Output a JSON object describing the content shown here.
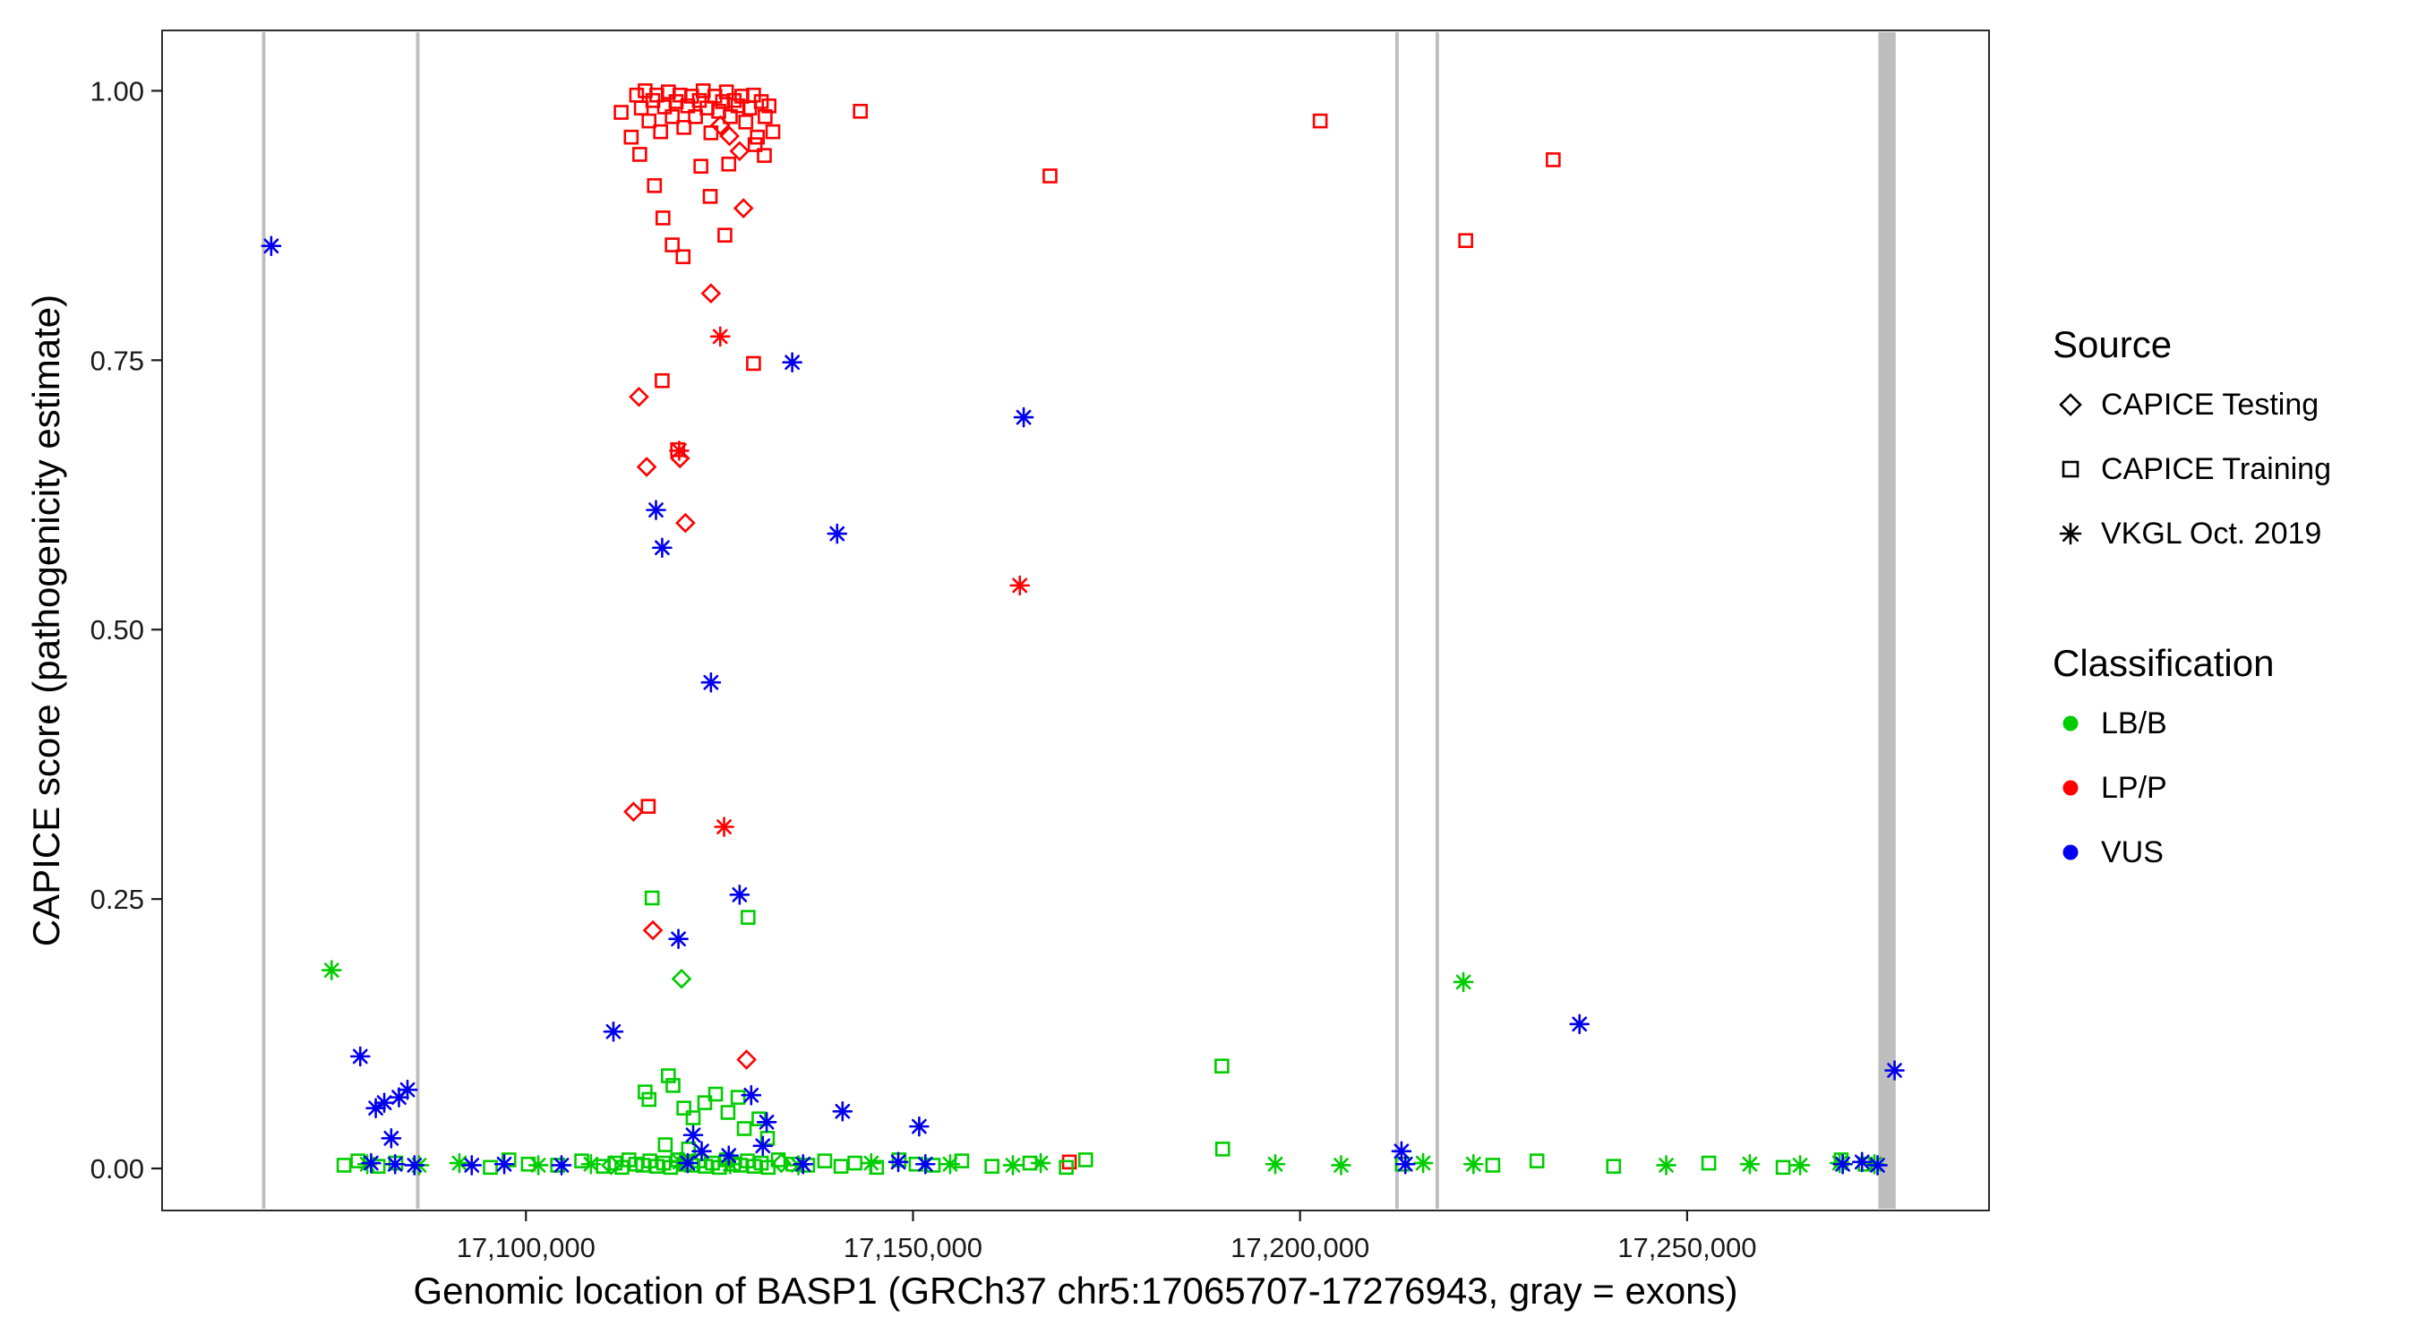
{
  "legend": {
    "source_title": "Source",
    "source_items": [
      {
        "label": "CAPICE Testing",
        "shape": "diamond"
      },
      {
        "label": "CAPICE Training",
        "shape": "square"
      },
      {
        "label": "VKGL Oct. 2019",
        "shape": "asterisk"
      }
    ],
    "classification_title": "Classification",
    "classification_items": [
      {
        "label": "LB/B",
        "color": "#00CD00"
      },
      {
        "label": "LP/P",
        "color": "#FF0000"
      },
      {
        "label": "VUS",
        "color": "#0000EE"
      }
    ]
  },
  "chart_data": {
    "type": "scatter",
    "title": "",
    "xlabel": "Genomic location of BASP1 (GRCh37 chr5:17065707-17276943, gray = exons)",
    "ylabel": "CAPICE score (pathogenicity estimate)",
    "x_domain": [
      17053000,
      17289000
    ],
    "y_domain": [
      -0.039,
      1.056
    ],
    "grid": "off",
    "legend_position": "right",
    "x_ticks": [
      {
        "value": 17100000,
        "label": "17,100,000"
      },
      {
        "value": 17150000,
        "label": "17,150,000"
      },
      {
        "value": 17200000,
        "label": "17,200,000"
      },
      {
        "value": 17250000,
        "label": "17,250,000"
      }
    ],
    "y_ticks": [
      {
        "value": 0,
        "label": "0.00"
      },
      {
        "value": 0.25,
        "label": "0.25"
      },
      {
        "value": 0.5,
        "label": "0.50"
      },
      {
        "value": 0.75,
        "label": "0.75"
      },
      {
        "value": 1,
        "label": "1.00"
      }
    ],
    "exon_color": "#BEBEBE",
    "exons": [
      [
        17065900,
        17066350
      ],
      [
        17085800,
        17086250
      ],
      [
        17212300,
        17212750
      ],
      [
        17217500,
        17217950
      ],
      [
        17274700,
        17276943
      ]
    ],
    "series": [
      {
        "source": "CAPICE Training",
        "classification": "LP/P",
        "shape": "square",
        "color": "#FF0000",
        "points": [
          [
            17112300,
            0.98
          ],
          [
            17113600,
            0.957
          ],
          [
            17114300,
            0.996
          ],
          [
            17114900,
            0.984
          ],
          [
            17115400,
            1.0
          ],
          [
            17115900,
            0.972
          ],
          [
            17116400,
            0.991
          ],
          [
            17116900,
            0.996
          ],
          [
            17117400,
            0.962
          ],
          [
            17117900,
            0.985
          ],
          [
            17118400,
            0.999
          ],
          [
            17118900,
            0.976
          ],
          [
            17119400,
            0.99
          ],
          [
            17119900,
            0.996
          ],
          [
            17120400,
            0.966
          ],
          [
            17120900,
            0.986
          ],
          [
            17121400,
            0.995
          ],
          [
            17121900,
            0.976
          ],
          [
            17122400,
            0.991
          ],
          [
            17122900,
            1.0
          ],
          [
            17123400,
            0.984
          ],
          [
            17123900,
            0.961
          ],
          [
            17124400,
            0.995
          ],
          [
            17124900,
            0.981
          ],
          [
            17125400,
            0.99
          ],
          [
            17125900,
            0.999
          ],
          [
            17126400,
            0.976
          ],
          [
            17126900,
            0.991
          ],
          [
            17127400,
            0.986
          ],
          [
            17127900,
            0.995
          ],
          [
            17128400,
            0.971
          ],
          [
            17128900,
            0.984
          ],
          [
            17129400,
            0.996
          ],
          [
            17129900,
            0.957
          ],
          [
            17130400,
            0.99
          ],
          [
            17130900,
            0.976
          ],
          [
            17131400,
            0.986
          ],
          [
            17131900,
            0.962
          ],
          [
            17114700,
            0.941
          ],
          [
            17116600,
            0.912
          ],
          [
            17117700,
            0.882
          ],
          [
            17118900,
            0.857
          ],
          [
            17120300,
            0.846
          ],
          [
            17122600,
            0.93
          ],
          [
            17123800,
            0.902
          ],
          [
            17125700,
            0.866
          ],
          [
            17126200,
            0.932
          ],
          [
            17129600,
            0.95
          ],
          [
            17130800,
            0.94
          ],
          [
            17117600,
            0.731
          ],
          [
            17129400,
            0.747
          ],
          [
            17119600,
            0.667
          ],
          [
            17115800,
            0.336
          ],
          [
            17143200,
            0.981
          ],
          [
            17167700,
            0.921
          ],
          [
            17202600,
            0.972
          ],
          [
            17221400,
            0.861
          ],
          [
            17232700,
            0.936
          ],
          [
            17170200,
            0.006
          ]
        ]
      },
      {
        "source": "CAPICE Testing",
        "classification": "LP/P",
        "shape": "diamond",
        "color": "#FF0000",
        "points": [
          [
            17114600,
            0.716
          ],
          [
            17115600,
            0.651
          ],
          [
            17119900,
            0.659
          ],
          [
            17120600,
            0.599
          ],
          [
            17123900,
            0.812
          ],
          [
            17128100,
            0.891
          ],
          [
            17126300,
            0.958
          ],
          [
            17127600,
            0.944
          ],
          [
            17125100,
            0.968
          ],
          [
            17113900,
            0.331
          ],
          [
            17116400,
            0.221
          ],
          [
            17128500,
            0.101
          ]
        ]
      },
      {
        "source": "VKGL Oct. 2019",
        "classification": "LP/P",
        "shape": "asterisk",
        "color": "#FF0000",
        "points": [
          [
            17125100,
            0.772
          ],
          [
            17125600,
            0.317
          ],
          [
            17163800,
            0.541
          ],
          [
            17119800,
            0.666
          ]
        ]
      },
      {
        "source": "CAPICE Training",
        "classification": "LB/B",
        "shape": "square",
        "color": "#00CD00",
        "points": [
          [
            17116300,
            0.251
          ],
          [
            17128700,
            0.233
          ],
          [
            17189900,
            0.095
          ],
          [
            17115400,
            0.071
          ],
          [
            17115900,
            0.064
          ],
          [
            17118400,
            0.086
          ],
          [
            17119000,
            0.077
          ],
          [
            17120400,
            0.056
          ],
          [
            17121600,
            0.047
          ],
          [
            17123100,
            0.061
          ],
          [
            17124500,
            0.069
          ],
          [
            17126100,
            0.052
          ],
          [
            17127400,
            0.066
          ],
          [
            17128200,
            0.037
          ],
          [
            17130100,
            0.046
          ],
          [
            17131200,
            0.028
          ],
          [
            17118000,
            0.022
          ],
          [
            17121000,
            0.018
          ],
          [
            17076500,
            0.003
          ],
          [
            17078300,
            0.007
          ],
          [
            17080900,
            0.002
          ],
          [
            17083200,
            0.005
          ],
          [
            17095400,
            0.001
          ],
          [
            17097800,
            0.008
          ],
          [
            17100300,
            0.004
          ],
          [
            17104100,
            0.003
          ],
          [
            17107200,
            0.007
          ],
          [
            17110000,
            0.002
          ],
          [
            17111500,
            0.005
          ],
          [
            17112400,
            0.001
          ],
          [
            17113300,
            0.008
          ],
          [
            17114200,
            0.004
          ],
          [
            17115100,
            0.003
          ],
          [
            17116000,
            0.007
          ],
          [
            17116900,
            0.002
          ],
          [
            17117800,
            0.005
          ],
          [
            17118700,
            0.001
          ],
          [
            17119600,
            0.008
          ],
          [
            17120500,
            0.004
          ],
          [
            17121400,
            0.003
          ],
          [
            17122300,
            0.007
          ],
          [
            17123200,
            0.002
          ],
          [
            17124100,
            0.005
          ],
          [
            17125000,
            0.001
          ],
          [
            17125900,
            0.008
          ],
          [
            17126800,
            0.004
          ],
          [
            17127700,
            0.003
          ],
          [
            17128600,
            0.007
          ],
          [
            17129500,
            0.002
          ],
          [
            17130400,
            0.005
          ],
          [
            17131300,
            0.001
          ],
          [
            17132600,
            0.008
          ],
          [
            17134500,
            0.004
          ],
          [
            17136400,
            0.003
          ],
          [
            17138600,
            0.007
          ],
          [
            17140700,
            0.002
          ],
          [
            17142500,
            0.005
          ],
          [
            17145300,
            0.001
          ],
          [
            17148200,
            0.008
          ],
          [
            17150400,
            0.004
          ],
          [
            17152600,
            0.003
          ],
          [
            17156300,
            0.007
          ],
          [
            17160200,
            0.002
          ],
          [
            17165100,
            0.005
          ],
          [
            17169800,
            0.001
          ],
          [
            17172300,
            0.008
          ],
          [
            17190000,
            0.018
          ],
          [
            17213200,
            0.004
          ],
          [
            17224900,
            0.003
          ],
          [
            17230600,
            0.007
          ],
          [
            17240500,
            0.002
          ],
          [
            17252800,
            0.005
          ],
          [
            17262400,
            0.001
          ],
          [
            17269900,
            0.008
          ],
          [
            17273000,
            0.004
          ]
        ]
      },
      {
        "source": "CAPICE Testing",
        "classification": "LB/B",
        "shape": "diamond",
        "color": "#00CD00",
        "points": [
          [
            17120100,
            0.176
          ],
          [
            17133000,
            0.005
          ],
          [
            17111000,
            0.003
          ]
        ]
      },
      {
        "source": "VKGL Oct. 2019",
        "classification": "LB/B",
        "shape": "asterisk",
        "color": "#00CD00",
        "points": [
          [
            17074900,
            0.184
          ],
          [
            17221100,
            0.173
          ],
          [
            17079500,
            0.004
          ],
          [
            17086200,
            0.003
          ],
          [
            17091400,
            0.005
          ],
          [
            17101600,
            0.003
          ],
          [
            17108400,
            0.004
          ],
          [
            17119900,
            0.006
          ],
          [
            17126400,
            0.004
          ],
          [
            17135200,
            0.003
          ],
          [
            17144600,
            0.005
          ],
          [
            17154800,
            0.004
          ],
          [
            17162900,
            0.003
          ],
          [
            17166500,
            0.005
          ],
          [
            17196800,
            0.004
          ],
          [
            17205300,
            0.003
          ],
          [
            17215900,
            0.005
          ],
          [
            17222400,
            0.004
          ],
          [
            17247300,
            0.003
          ],
          [
            17258100,
            0.004
          ],
          [
            17264600,
            0.003
          ],
          [
            17269700,
            0.005
          ],
          [
            17274200,
            0.004
          ]
        ]
      },
      {
        "source": "VKGL Oct. 2019",
        "classification": "VUS",
        "shape": "asterisk",
        "color": "#0000EE",
        "points": [
          [
            17067100,
            0.856
          ],
          [
            17078600,
            0.104
          ],
          [
            17080600,
            0.056
          ],
          [
            17081700,
            0.061
          ],
          [
            17083600,
            0.066
          ],
          [
            17084700,
            0.073
          ],
          [
            17082600,
            0.028
          ],
          [
            17083100,
            0.004
          ],
          [
            17085600,
            0.003
          ],
          [
            17111300,
            0.127
          ],
          [
            17116800,
            0.611
          ],
          [
            17117600,
            0.576
          ],
          [
            17123900,
            0.451
          ],
          [
            17127600,
            0.254
          ],
          [
            17119700,
            0.213
          ],
          [
            17134400,
            0.748
          ],
          [
            17140200,
            0.589
          ],
          [
            17164300,
            0.697
          ],
          [
            17140900,
            0.053
          ],
          [
            17150800,
            0.039
          ],
          [
            17129100,
            0.068
          ],
          [
            17131100,
            0.043
          ],
          [
            17130600,
            0.021
          ],
          [
            17121600,
            0.031
          ],
          [
            17122700,
            0.016
          ],
          [
            17126200,
            0.012
          ],
          [
            17213100,
            0.016
          ],
          [
            17213600,
            0.004
          ],
          [
            17236100,
            0.134
          ],
          [
            17276800,
            0.091
          ],
          [
            17270100,
            0.004
          ],
          [
            17274600,
            0.003
          ],
          [
            17272600,
            0.006
          ],
          [
            17148100,
            0.006
          ],
          [
            17151600,
            0.004
          ],
          [
            17097200,
            0.004
          ],
          [
            17104600,
            0.003
          ],
          [
            17120900,
            0.005
          ],
          [
            17135800,
            0.004
          ],
          [
            17093000,
            0.003
          ],
          [
            17080000,
            0.005
          ]
        ]
      }
    ]
  }
}
